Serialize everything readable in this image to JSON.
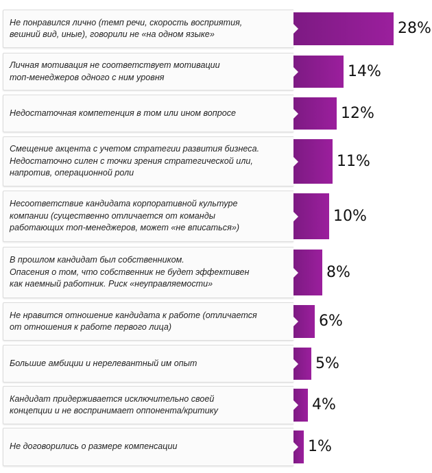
{
  "chart_data": {
    "type": "bar",
    "orientation": "horizontal",
    "categories": [
      "Не понравился лично (темп речи, скорость восприятия,\nвешний вид, иные), говорили не «на одном языке»",
      "Личная мотивация не соответствует мотивации\nтоп-менеджеров одного с ним уровня",
      "Недостаточная компетенция в том или ином вопросе",
      "Смещение акцента с учетом стратегии развития бизнеса.\nНедостаточно силен с точки зрения стратегической или,\nнапротив, операционной роли",
      "Несоответствие кандидата корпоративной культуре\nкомпании (существенно отличается от команды\nработающих топ-менеджеров, может «не вписаться»)",
      "В прошлом кандидат был собственником.\nОпасения о том, что собственник не будет эффективен\nкак наемный работник. Риск «неуправляемости»",
      "Не нравится отношение кандидата к работе (отличается\nот отношения к работе первого лица)",
      "Большие амбиции и нерелевантный им опыт",
      "Кандидат придерживается исключительно своей\nконцепции и не воспринимает оппонента/критику",
      "Не договорились о размере компенсации"
    ],
    "values": [
      28,
      14,
      12,
      11,
      10,
      8,
      6,
      5,
      4,
      1
    ],
    "value_labels": [
      "28%",
      "14%",
      "12%",
      "11%",
      "10%",
      "8%",
      "6%",
      "5%",
      "4%",
      "1%"
    ],
    "bar_color": "#8e1d92",
    "card_background": "#fbfbfb",
    "text_color": "#222222"
  }
}
